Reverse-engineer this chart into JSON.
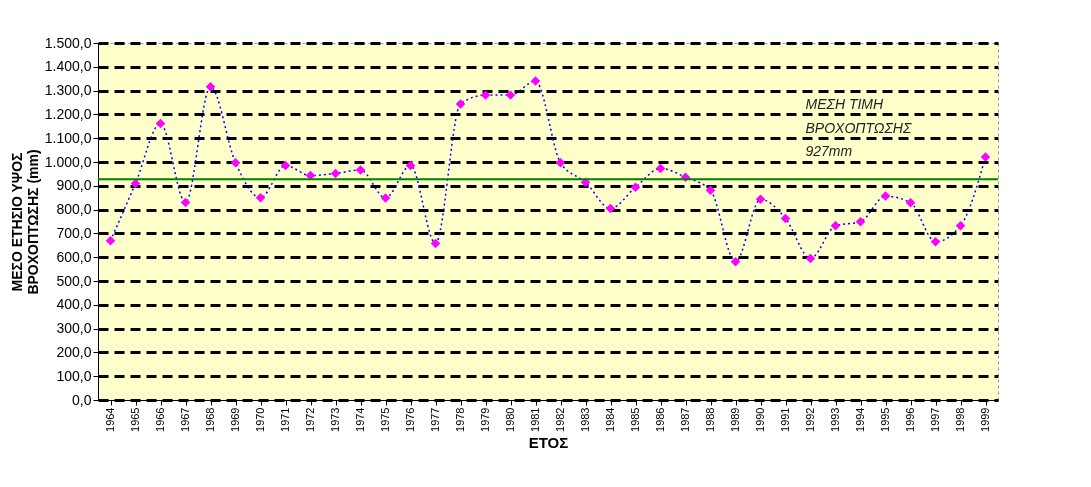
{
  "chart_data": {
    "type": "line",
    "xlabel": "ΕΤΟΣ",
    "ylabel": "ΜΕΣΟ ΕΤΗΣΙΟ ΥΨΟΣ\nΒΡΟΧΟΠΤΩΣΗΣ  (mm)",
    "categories": [
      "1964",
      "1965",
      "1966",
      "1967",
      "1968",
      "1969",
      "1970",
      "1971",
      "1972",
      "1973",
      "1974",
      "1975",
      "1976",
      "1977",
      "1978",
      "1979",
      "1980",
      "1981",
      "1982",
      "1983",
      "1984",
      "1985",
      "1986",
      "1987",
      "1988",
      "1989",
      "1990",
      "1991",
      "1992",
      "1993",
      "1994",
      "1995",
      "1996",
      "1997",
      "1998",
      "1999"
    ],
    "series": [
      {
        "color": "#0000ff",
        "marker": "none",
        "values": [
          669,
          910,
          1162,
          830,
          1316,
          997,
          850,
          985,
          943,
          952,
          966,
          849,
          985,
          658,
          1244,
          1281,
          1281,
          1340,
          997,
          915,
          805,
          894,
          973,
          936,
          881,
          581,
          843,
          763,
          595,
          732,
          749,
          857,
          829,
          665,
          732,
          1021
        ]
      },
      {
        "type": "scatter",
        "marker": "diamond",
        "color": "#ff00ff",
        "values": [
          669,
          910,
          1162,
          830,
          1316,
          997,
          850,
          985,
          943,
          952,
          966,
          849,
          985,
          658,
          1244,
          1281,
          1281,
          1340,
          997,
          915,
          805,
          894,
          973,
          936,
          881,
          581,
          843,
          763,
          595,
          732,
          749,
          857,
          829,
          665,
          732,
          1021
        ]
      }
    ],
    "ylim": [
      0,
      1500
    ],
    "yticks": [
      {
        "value": 0,
        "label": "0,0"
      },
      {
        "value": 100,
        "label": "100,0"
      },
      {
        "value": 200,
        "label": "200,0"
      },
      {
        "value": 300,
        "label": "300,0"
      },
      {
        "value": 400,
        "label": "400,0"
      },
      {
        "value": 500,
        "label": "500,0"
      },
      {
        "value": 600,
        "label": "600,0"
      },
      {
        "value": 700,
        "label": "700,0"
      },
      {
        "value": 800,
        "label": "800,0"
      },
      {
        "value": 900,
        "label": "900,0"
      },
      {
        "value": 1000,
        "label": "1.000,0"
      },
      {
        "value": 1100,
        "label": "1.100,0"
      },
      {
        "value": 1200,
        "label": "1.200,0"
      },
      {
        "value": 1300,
        "label": "1.300,0"
      },
      {
        "value": 1400,
        "label": "1.400,0"
      },
      {
        "value": 1500,
        "label": "1.500,0"
      }
    ],
    "ref_lines": [
      {
        "axis": "y",
        "value": 927,
        "label": "ΜΕΣΗ ΤΙΜΗ\nΒΡΟΧΟΠΤΩΣΗΣ\n927mm",
        "color": "#008000",
        "line_style": "solid"
      }
    ],
    "grid": "y",
    "line_style": "dotted"
  }
}
